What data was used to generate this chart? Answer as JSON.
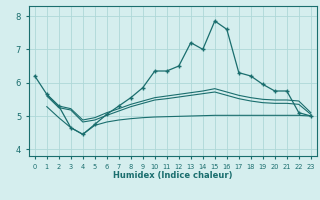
{
  "xlabel": "Humidex (Indice chaleur)",
  "xlim": [
    -0.5,
    23.5
  ],
  "ylim": [
    3.8,
    8.3
  ],
  "yticks": [
    4,
    5,
    6,
    7,
    8
  ],
  "xticks": [
    0,
    1,
    2,
    3,
    4,
    5,
    6,
    7,
    8,
    9,
    10,
    11,
    12,
    13,
    14,
    15,
    16,
    17,
    18,
    19,
    20,
    21,
    22,
    23
  ],
  "background_color": "#d5eeee",
  "grid_color": "#aed8d8",
  "line_color": "#1a6e6e",
  "lines": [
    {
      "x": [
        0,
        1,
        2,
        3,
        4,
        5,
        6,
        7,
        8,
        9,
        10,
        11,
        12,
        13,
        14,
        15,
        16,
        17,
        18,
        19,
        20,
        21,
        22,
        23
      ],
      "y": [
        6.2,
        5.65,
        5.3,
        4.65,
        4.45,
        4.75,
        5.05,
        5.3,
        5.55,
        5.85,
        6.35,
        6.35,
        6.5,
        7.2,
        7.0,
        7.85,
        7.6,
        6.3,
        6.2,
        5.95,
        5.75,
        5.75,
        5.1,
        5.0
      ],
      "marker": true
    },
    {
      "x": [
        1,
        2,
        3,
        4,
        5,
        6,
        7,
        8,
        9,
        10,
        11,
        12,
        13,
        14,
        15,
        16,
        17,
        18,
        19,
        20,
        21,
        22,
        23
      ],
      "y": [
        5.65,
        5.3,
        5.22,
        4.88,
        4.95,
        5.1,
        5.22,
        5.35,
        5.45,
        5.55,
        5.6,
        5.65,
        5.7,
        5.75,
        5.82,
        5.72,
        5.62,
        5.55,
        5.5,
        5.48,
        5.48,
        5.45,
        5.1
      ],
      "marker": false
    },
    {
      "x": [
        1,
        2,
        3,
        4,
        5,
        6,
        7,
        8,
        9,
        10,
        11,
        12,
        13,
        14,
        15,
        16,
        17,
        18,
        19,
        20,
        21,
        22,
        23
      ],
      "y": [
        5.6,
        5.25,
        5.18,
        4.82,
        4.88,
        5.02,
        5.15,
        5.28,
        5.38,
        5.48,
        5.52,
        5.57,
        5.62,
        5.67,
        5.72,
        5.62,
        5.52,
        5.45,
        5.4,
        5.38,
        5.38,
        5.35,
        5.05
      ],
      "marker": false
    },
    {
      "x": [
        1,
        2,
        3,
        4,
        5,
        6,
        7,
        8,
        9,
        10,
        11,
        12,
        13,
        14,
        15,
        16,
        17,
        18,
        19,
        20,
        21,
        22,
        23
      ],
      "y": [
        5.28,
        4.95,
        4.65,
        4.45,
        4.72,
        4.82,
        4.88,
        4.92,
        4.95,
        4.97,
        4.98,
        4.99,
        5.0,
        5.01,
        5.02,
        5.02,
        5.02,
        5.02,
        5.02,
        5.02,
        5.02,
        5.02,
        5.0
      ],
      "marker": false
    }
  ]
}
